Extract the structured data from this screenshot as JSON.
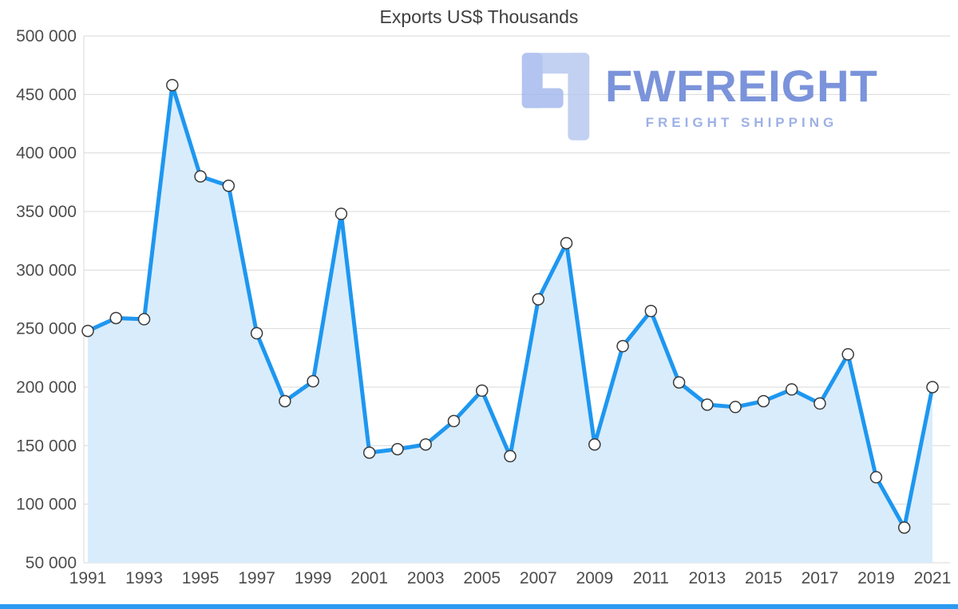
{
  "watermark": {
    "brand": "FWFREIGHT",
    "tagline": "FREIGHT SHIPPING"
  },
  "chart_data": {
    "type": "area",
    "title": "Exports US$ Thousands",
    "xlabel": "",
    "ylabel": "",
    "x": [
      1991,
      1992,
      1993,
      1994,
      1995,
      1996,
      1997,
      1998,
      1999,
      2000,
      2001,
      2002,
      2003,
      2004,
      2005,
      2006,
      2007,
      2008,
      2009,
      2010,
      2011,
      2012,
      2013,
      2014,
      2015,
      2016,
      2017,
      2018,
      2019,
      2020,
      2021
    ],
    "values": [
      248000,
      259000,
      258000,
      458000,
      380000,
      372000,
      246000,
      188000,
      205000,
      348000,
      144000,
      147000,
      151000,
      171000,
      197000,
      141000,
      275000,
      323000,
      151000,
      235000,
      265000,
      204000,
      185000,
      183000,
      188000,
      198000,
      186000,
      228000,
      123000,
      80000,
      200000
    ],
    "ylim": [
      50000,
      500000
    ],
    "ytick_step": 50000,
    "xticks": [
      1991,
      1993,
      1995,
      1997,
      1999,
      2001,
      2003,
      2005,
      2007,
      2009,
      2011,
      2013,
      2015,
      2017,
      2019,
      2021
    ],
    "grid": true,
    "legend": "none",
    "marker": "circle",
    "colors": {
      "line": "#1e97f0",
      "fill": "#d9ecfc",
      "marker_fill": "#ffffff",
      "marker_stroke": "#3a3a3a",
      "grid": "#d9d9d9",
      "tick_label": "#4d4d4d",
      "title": "#3f3f3f",
      "watermark_brand": "#7b93da",
      "watermark_tagline": "#9db1e6",
      "logo_light": "#b4c6f0",
      "logo_dark": "#9fb6ec",
      "accent_bar": "#2b9af0"
    }
  }
}
